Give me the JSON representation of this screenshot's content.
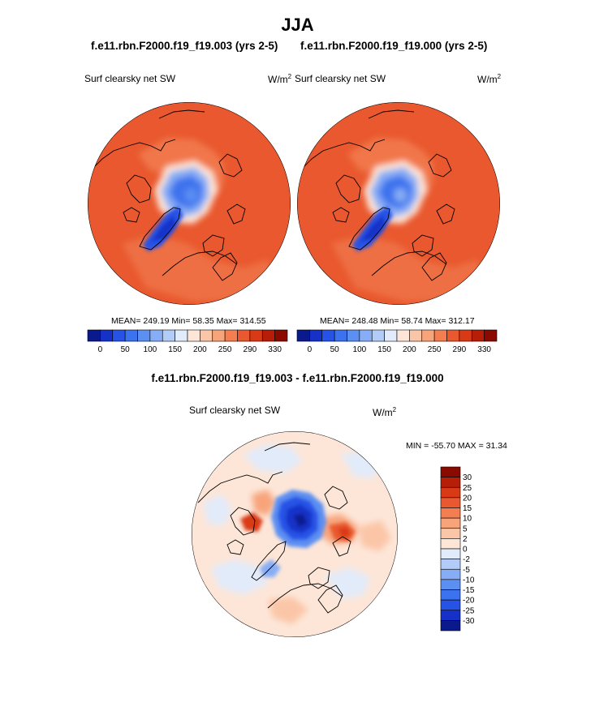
{
  "page": {
    "title": "JJA",
    "diff_title": "f.e11.rbn.F2000.f19_f19.003 - f.e11.rbn.F2000.f19_f19.000"
  },
  "chart_data": [
    {
      "type": "heatmap",
      "projection": "polar stereographic (north)",
      "title": "f.e11.rbn.F2000.f19_f19.003 (yrs 2-5)",
      "variable": "Surf clearsky net SW",
      "units": "W/m",
      "units_exp": "2",
      "stats_text": "MEAN= 249.19  Min=  58.35  Max= 314.55",
      "stats": {
        "mean": 249.19,
        "min": 58.35,
        "max": 314.55
      },
      "colorbar": {
        "orientation": "horizontal",
        "levels": [
          0,
          25,
          50,
          75,
          100,
          125,
          150,
          175,
          200,
          225,
          250,
          270,
          290,
          310,
          330
        ],
        "labels": [
          "0",
          "50",
          "100",
          "150",
          "200",
          "250",
          "290",
          "330"
        ],
        "colors": [
          "#0a1a8c",
          "#1531c8",
          "#2653e6",
          "#3d72ee",
          "#5b8ff2",
          "#86adf5",
          "#b3cbf7",
          "#e2ebfa",
          "#fde6d8",
          "#fbc6a8",
          "#f7a47b",
          "#f27e52",
          "#e9582e",
          "#d93a16",
          "#b71e08",
          "#8b0a00"
        ]
      },
      "extent": "north polar cap, ~20N to 90N"
    },
    {
      "type": "heatmap",
      "projection": "polar stereographic (north)",
      "title": "f.e11.rbn.F2000.f19_f19.000 (yrs 2-5)",
      "variable": "Surf clearsky net SW",
      "units": "W/m",
      "units_exp": "2",
      "stats_text": "MEAN= 248.48  Min=  58.74  Max= 312.17",
      "stats": {
        "mean": 248.48,
        "min": 58.74,
        "max": 312.17
      },
      "colorbar": {
        "orientation": "horizontal",
        "levels": [
          0,
          25,
          50,
          75,
          100,
          125,
          150,
          175,
          200,
          225,
          250,
          270,
          290,
          310,
          330
        ],
        "labels": [
          "0",
          "50",
          "100",
          "150",
          "200",
          "250",
          "290",
          "330"
        ],
        "colors": [
          "#0a1a8c",
          "#1531c8",
          "#2653e6",
          "#3d72ee",
          "#5b8ff2",
          "#86adf5",
          "#b3cbf7",
          "#e2ebfa",
          "#fde6d8",
          "#fbc6a8",
          "#f7a47b",
          "#f27e52",
          "#e9582e",
          "#d93a16",
          "#b71e08",
          "#8b0a00"
        ]
      },
      "extent": "north polar cap, ~20N to 90N"
    },
    {
      "type": "heatmap",
      "projection": "polar stereographic (north)",
      "title": "f.e11.rbn.F2000.f19_f19.003 - f.e11.rbn.F2000.f19_f19.000",
      "variable": "Surf clearsky net SW",
      "units": "W/m",
      "units_exp": "2",
      "stats_text": "MIN = -55.70 MAX =  31.34",
      "stats": {
        "min": -55.7,
        "max": 31.34
      },
      "colorbar": {
        "orientation": "vertical",
        "levels": [
          30,
          25,
          20,
          15,
          10,
          5,
          2,
          0,
          -2,
          -5,
          -10,
          -15,
          -20,
          -25,
          -30
        ],
        "labels": [
          "30",
          "25",
          "20",
          "15",
          "10",
          "5",
          "2",
          "0",
          "-2",
          "-5",
          "-10",
          "-15",
          "-20",
          "-25",
          "-30"
        ],
        "colors": [
          "#8b0a00",
          "#b71e08",
          "#d93a16",
          "#e9582e",
          "#f27e52",
          "#f7a47b",
          "#fbc6a8",
          "#fde6d8",
          "#e2ebfa",
          "#b3cbf7",
          "#86adf5",
          "#5b8ff2",
          "#3d72ee",
          "#2653e6",
          "#1531c8",
          "#0a1a8c"
        ]
      },
      "extent": "north polar cap, ~20N to 90N"
    }
  ]
}
